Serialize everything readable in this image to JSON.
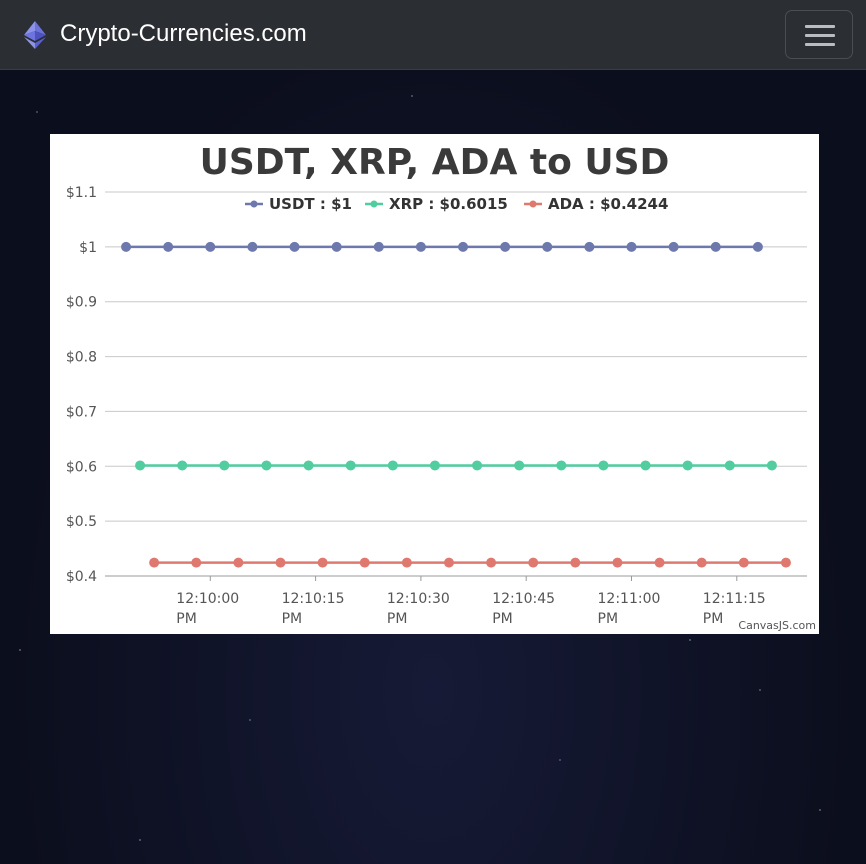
{
  "navbar": {
    "brand": "Crypto-Currencies.com",
    "logo_icon": "ethereum-diamond-icon",
    "menu_icon": "hamburger-menu-icon"
  },
  "chart": {
    "credit": "CanvasJS.com"
  },
  "chart_data": {
    "type": "line",
    "title": "USDT, XRP, ADA to USD",
    "xlabel": "",
    "ylabel": "",
    "ylim": [
      0.4,
      1.1
    ],
    "yticks": [
      "$1.1",
      "$1",
      "$0.9",
      "$0.8",
      "$0.7",
      "$0.6",
      "$0.5",
      "$0.4"
    ],
    "ytick_values": [
      1.1,
      1.0,
      0.9,
      0.8,
      0.7,
      0.6,
      0.5,
      0.4
    ],
    "xlim": [
      "12:09:45",
      "12:11:25"
    ],
    "xticks": [
      {
        "time": "12:10:00",
        "label": [
          "12:10:00",
          "PM"
        ]
      },
      {
        "time": "12:10:15",
        "label": [
          "12:10:15",
          "PM"
        ]
      },
      {
        "time": "12:10:30",
        "label": [
          "12:10:30",
          "PM"
        ]
      },
      {
        "time": "12:10:45",
        "label": [
          "12:10:45",
          "PM"
        ]
      },
      {
        "time": "12:11:00",
        "label": [
          "12:11:00",
          "PM"
        ]
      },
      {
        "time": "12:11:15",
        "label": [
          "12:11:15",
          "PM"
        ]
      }
    ],
    "grid": true,
    "legend": "top-center",
    "series": [
      {
        "name": "USDT : $1",
        "color": "#6d78ad",
        "x": [
          "12:09:48",
          "12:09:54",
          "12:10:00",
          "12:10:06",
          "12:10:12",
          "12:10:18",
          "12:10:24",
          "12:10:30",
          "12:10:36",
          "12:10:42",
          "12:10:48",
          "12:10:54",
          "12:11:00",
          "12:11:06",
          "12:11:12",
          "12:11:18"
        ],
        "values": [
          1,
          1,
          1,
          1,
          1,
          1,
          1,
          1,
          1,
          1,
          1,
          1,
          1,
          1,
          1,
          1
        ]
      },
      {
        "name": "XRP : $0.6015",
        "color": "#51cda0",
        "x": [
          "12:09:50",
          "12:09:56",
          "12:10:02",
          "12:10:08",
          "12:10:14",
          "12:10:20",
          "12:10:26",
          "12:10:32",
          "12:10:38",
          "12:10:44",
          "12:10:50",
          "12:10:56",
          "12:11:02",
          "12:11:08",
          "12:11:14",
          "12:11:20"
        ],
        "values": [
          0.6015,
          0.6015,
          0.6015,
          0.6015,
          0.6015,
          0.6015,
          0.6015,
          0.6015,
          0.6015,
          0.6015,
          0.6015,
          0.6015,
          0.6015,
          0.6015,
          0.6015,
          0.6015
        ]
      },
      {
        "name": "ADA : $0.4244",
        "color": "#df7970",
        "x": [
          "12:09:52",
          "12:09:58",
          "12:10:04",
          "12:10:10",
          "12:10:16",
          "12:10:22",
          "12:10:28",
          "12:10:34",
          "12:10:40",
          "12:10:46",
          "12:10:52",
          "12:10:58",
          "12:11:04",
          "12:11:10",
          "12:11:16",
          "12:11:22"
        ],
        "values": [
          0.4244,
          0.4244,
          0.4244,
          0.4244,
          0.4244,
          0.4244,
          0.4244,
          0.4244,
          0.4244,
          0.4244,
          0.4244,
          0.4244,
          0.4244,
          0.4244,
          0.4244,
          0.4244
        ]
      }
    ]
  }
}
